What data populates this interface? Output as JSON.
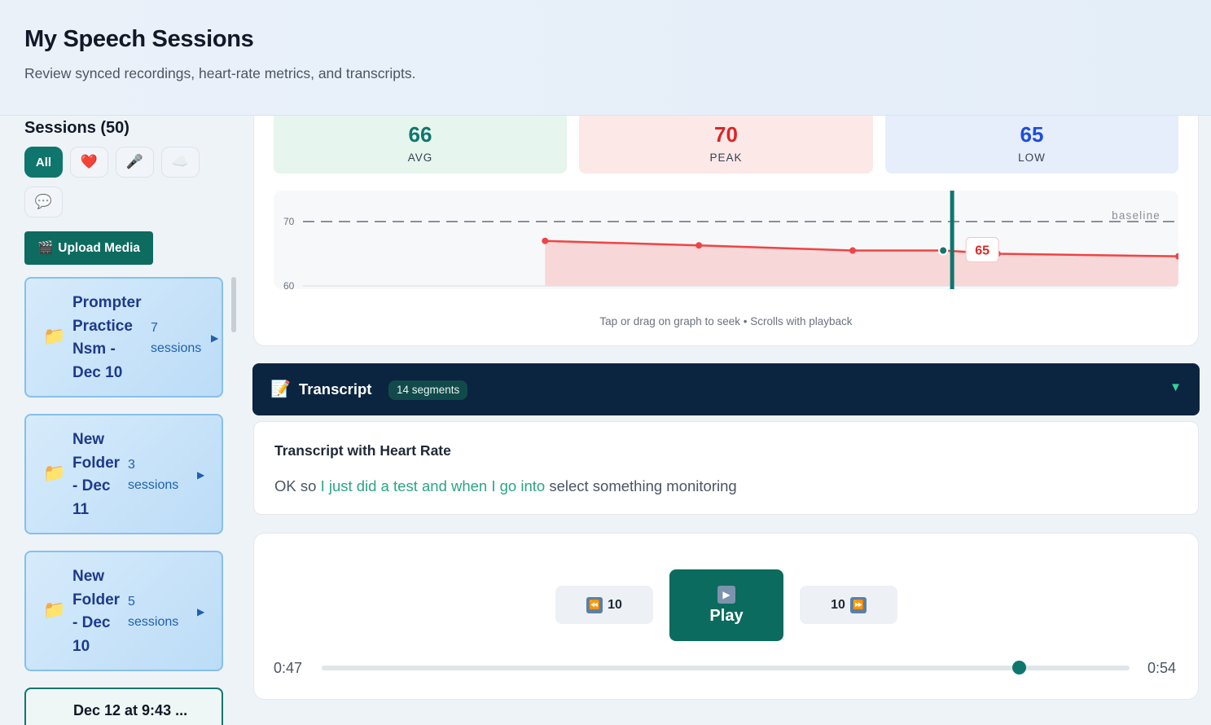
{
  "header": {
    "title": "My Speech Sessions",
    "subtitle": "Review synced recordings, heart-rate metrics, and transcripts."
  },
  "sidebar": {
    "sessions_title": "Sessions (50)",
    "filters": [
      {
        "label": "All",
        "icon": "all",
        "active": true
      },
      {
        "label": "❤️",
        "icon": "heart-icon",
        "active": false
      },
      {
        "label": "🎤",
        "icon": "microphone-icon",
        "active": false
      },
      {
        "label": "☁️",
        "icon": "cloud-icon",
        "active": false
      },
      {
        "label": "💬",
        "icon": "speech-bubble-icon",
        "active": false
      }
    ],
    "upload_icon": "🎬",
    "upload_label": "Upload Media",
    "folders": [
      {
        "name_lines": [
          "Prompter",
          "Practice",
          "Nsm -",
          "Dec 10"
        ],
        "count": "7",
        "count_label": "sessions"
      },
      {
        "name_lines": [
          "New",
          "Folder",
          "- Dec",
          "11"
        ],
        "count": "3",
        "count_label": "sessions"
      },
      {
        "name_lines": [
          "New",
          "Folder",
          "- Dec",
          "10"
        ],
        "count": "5",
        "count_label": "sessions"
      }
    ],
    "folder_icon": "📁",
    "folder_arrow": "▶",
    "partial_session": "Dec 12 at 9:43 ..."
  },
  "metrics": {
    "avg": {
      "value": "66",
      "label": "AVG",
      "color": "#0f766e",
      "bg": "#e6f5ee"
    },
    "peak": {
      "value": "70",
      "label": "PEAK",
      "color": "#dc2626",
      "bg": "#fde8e8"
    },
    "low": {
      "value": "65",
      "label": "LOW",
      "color": "#1d4ed8",
      "bg": "#e6edfb"
    }
  },
  "chart_data": {
    "type": "area",
    "title": "",
    "xlabel": "",
    "ylabel": "",
    "ylim": [
      60,
      70
    ],
    "yticks": [
      70,
      60
    ],
    "baseline": {
      "value": 70,
      "label": "baseline"
    },
    "x": [
      0.3,
      0.47,
      0.64,
      0.74,
      0.8,
      1.0
    ],
    "values": [
      67.0,
      66.3,
      65.5,
      65.5,
      65.0,
      64.6
    ],
    "playhead": 0.74,
    "playhead_label": "65",
    "series_color": "#ef4444",
    "hint": "Tap or drag on graph to seek • Scrolls with playback"
  },
  "transcript": {
    "icon": "📝",
    "title": "Transcript",
    "segments": "14 segments",
    "toggle": "▼",
    "heading": "Transcript with Heart Rate",
    "text_before": "OK so ",
    "text_highlight": "I just did a test and when I go into",
    "text_after": " select something monitoring"
  },
  "player": {
    "rewind_label": "10",
    "rewind_icon": "⏪",
    "forward_label": "10",
    "forward_icon": "⏩",
    "play_icon": "▶",
    "play_label": "Play",
    "current_time": "0:47",
    "total_time": "0:54",
    "progress": 0.863
  }
}
